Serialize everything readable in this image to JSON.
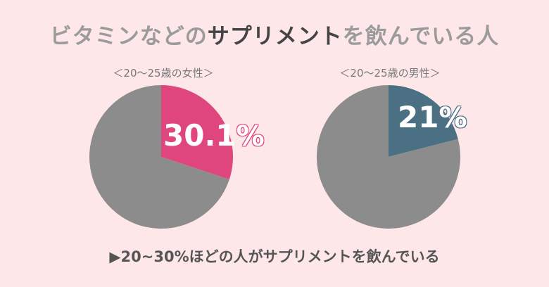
{
  "title": {
    "part1": "ビタミンなどの",
    "part2": "サプリメント",
    "part3": "を飲んでいる人"
  },
  "conclusion": "▶20~30%ほどの人がサプリメントを飲んでいる",
  "colors": {
    "background": "#fde7e8",
    "rest": "#8c8c8c",
    "women": "#e0467e",
    "men": "#4b7083"
  },
  "chart_data": [
    {
      "type": "pie",
      "title": "＜20〜25歳の女性＞",
      "slices": [
        {
          "label": "30.1",
          "value": 30.1,
          "color": "#e0467e"
        },
        {
          "label": "",
          "value": 69.9,
          "color": "#8c8c8c"
        }
      ],
      "data_label": {
        "num": "30.1",
        "sign": "%"
      }
    },
    {
      "type": "pie",
      "title": "＜20〜25歳の男性＞",
      "slices": [
        {
          "label": "21",
          "value": 21,
          "color": "#4b7083"
        },
        {
          "label": "",
          "value": 79,
          "color": "#8c8c8c"
        }
      ],
      "data_label": {
        "num": "21",
        "sign": "%"
      }
    }
  ]
}
